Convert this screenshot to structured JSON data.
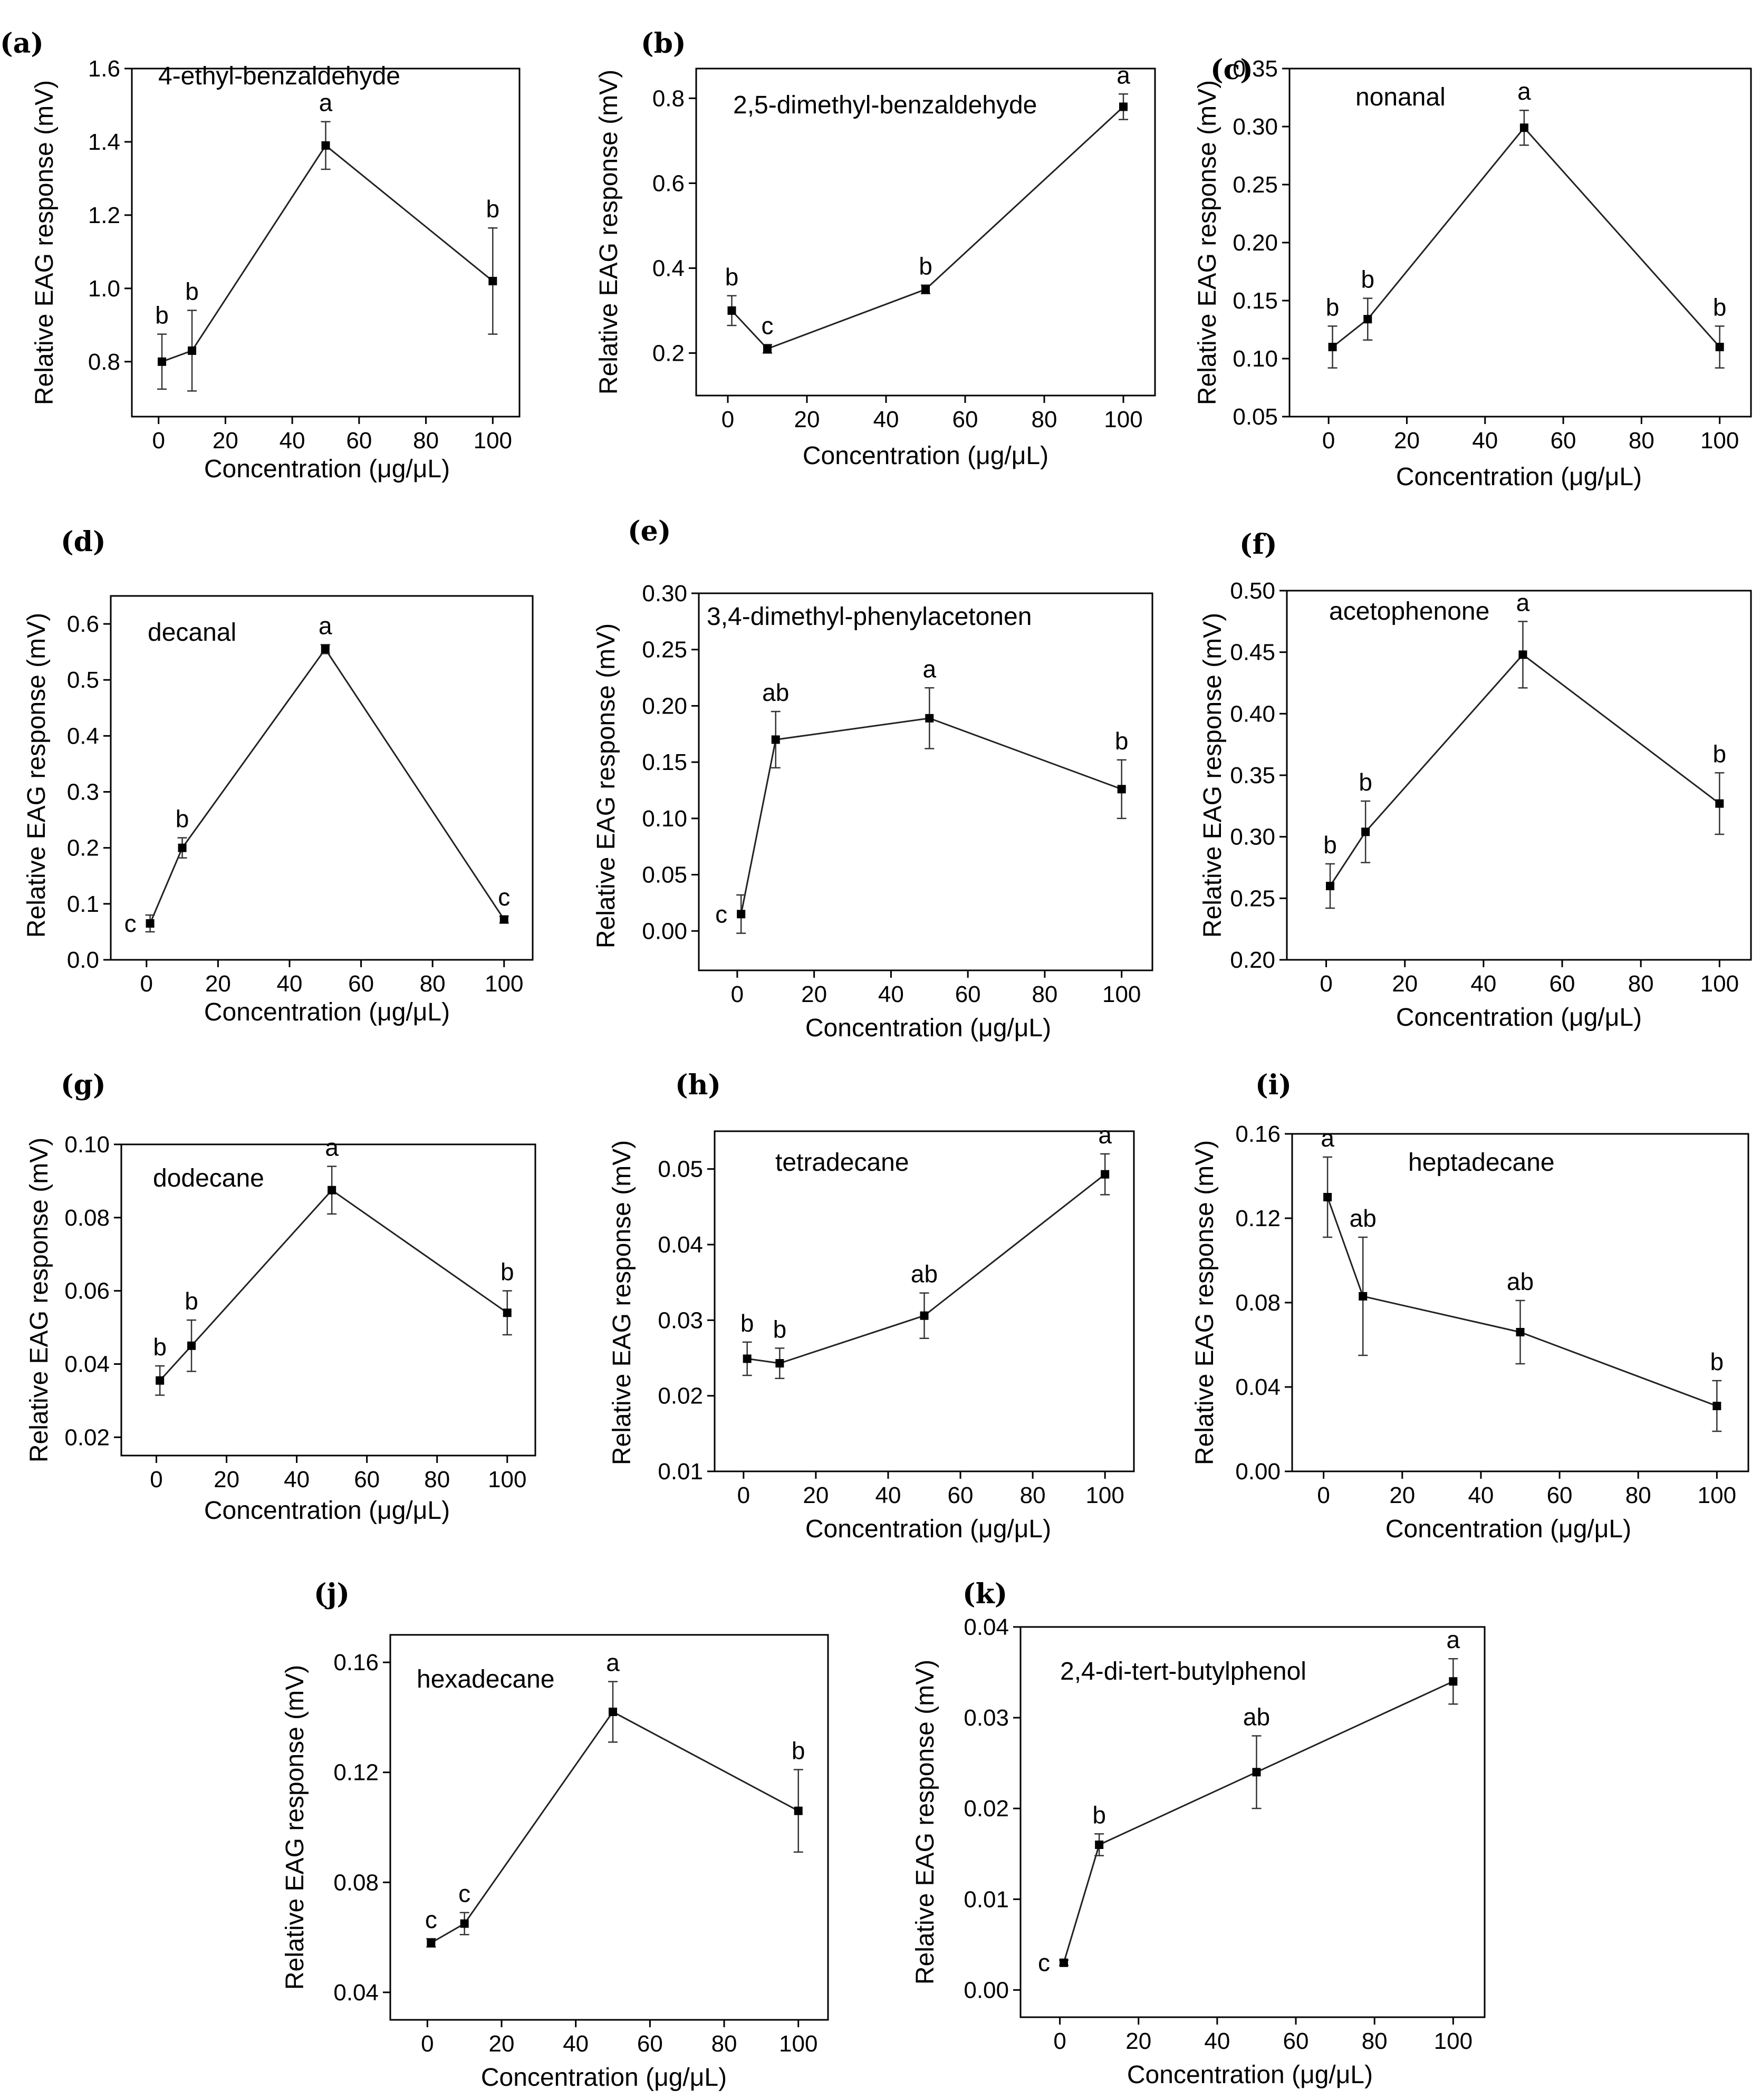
{
  "chart_data": [
    {
      "type": "line",
      "panel": "(a)",
      "title": "4-ethyl-benzaldehyde",
      "xlabel": "Concentration (μg/μL)",
      "ylabel": "Relative EAG response (mV)",
      "xlim": [
        -8,
        108
      ],
      "ylim": [
        0.65,
        1.6
      ],
      "xticks": [
        0,
        20,
        40,
        60,
        80,
        100
      ],
      "yticks": [
        0.8,
        1.0,
        1.2,
        1.4,
        1.6
      ],
      "ydec": 1,
      "x": [
        1,
        10,
        50,
        100
      ],
      "y": [
        0.8,
        0.83,
        1.39,
        1.02
      ],
      "err": [
        0.075,
        0.11,
        0.065,
        0.145
      ],
      "sig": [
        "b",
        "b",
        "a",
        "b"
      ]
    },
    {
      "type": "line",
      "panel": "(b)",
      "title": "2,5-dimethyl-benzaldehyde",
      "xlabel": "Concentration (μg/μL)",
      "ylabel": "Relative EAG response (mV)",
      "xlim": [
        -8,
        108
      ],
      "ylim": [
        0.1,
        0.87
      ],
      "xticks": [
        0,
        20,
        40,
        60,
        80,
        100
      ],
      "yticks": [
        0.2,
        0.4,
        0.6,
        0.8
      ],
      "ydec": 1,
      "x": [
        1,
        10,
        50,
        100
      ],
      "y": [
        0.3,
        0.21,
        0.35,
        0.78
      ],
      "err": [
        0.035,
        0.01,
        0.01,
        0.03
      ],
      "sig": [
        "b",
        "c",
        "b",
        "a"
      ]
    },
    {
      "type": "line",
      "panel": "(c)",
      "title": "nonanal",
      "xlabel": "Concentration (μg/μL)",
      "ylabel": "Relative EAG response (mV)",
      "xlim": [
        -10,
        108
      ],
      "ylim": [
        0.05,
        0.35
      ],
      "xticks": [
        0,
        20,
        40,
        60,
        80,
        100
      ],
      "yticks": [
        0.05,
        0.1,
        0.15,
        0.2,
        0.25,
        0.3,
        0.35
      ],
      "ydec": 2,
      "x": [
        1,
        10,
        50,
        100
      ],
      "y": [
        0.11,
        0.134,
        0.299,
        0.11
      ],
      "err": [
        0.018,
        0.018,
        0.015,
        0.018
      ],
      "sig": [
        "b",
        "b",
        "a",
        "b"
      ]
    },
    {
      "type": "line",
      "panel": "(d)",
      "title": "decanal",
      "xlabel": "Concentration (μg/μL)",
      "ylabel": "Relative EAG response (mV)",
      "xlim": [
        -10,
        108
      ],
      "ylim": [
        0.0,
        0.65
      ],
      "xticks": [
        0,
        20,
        40,
        60,
        80,
        100
      ],
      "yticks": [
        0.0,
        0.1,
        0.2,
        0.3,
        0.4,
        0.5,
        0.6
      ],
      "ydec": 1,
      "x": [
        1,
        10,
        50,
        100
      ],
      "y": [
        0.065,
        0.2,
        0.555,
        0.072
      ],
      "err": [
        0.015,
        0.018,
        0.008,
        0.006
      ],
      "sig": [
        "c",
        "b",
        "a",
        "c"
      ]
    },
    {
      "type": "line",
      "panel": "(e)",
      "title": "3,4-dimethyl-phenylacetonen",
      "xlabel": "Concentration (μg/μL)",
      "ylabel": "Relative EAG response (mV)",
      "xlim": [
        -10,
        108
      ],
      "ylim": [
        -0.035,
        0.3
      ],
      "xticks": [
        0,
        20,
        40,
        60,
        80,
        100
      ],
      "yticks": [
        0.0,
        0.05,
        0.1,
        0.15,
        0.2,
        0.25,
        0.3
      ],
      "ydec": 2,
      "x": [
        1,
        10,
        50,
        100
      ],
      "y": [
        0.015,
        0.17,
        0.189,
        0.126
      ],
      "err": [
        0.017,
        0.025,
        0.027,
        0.026
      ],
      "sig": [
        "c",
        "ab",
        "a",
        "b"
      ]
    },
    {
      "type": "line",
      "panel": "(f)",
      "title": "acetophenone",
      "xlabel": "Concentration (μg/μL)",
      "ylabel": "Relative EAG response (mV)",
      "xlim": [
        -10,
        108
      ],
      "ylim": [
        0.2,
        0.5
      ],
      "xticks": [
        0,
        20,
        40,
        60,
        80,
        100
      ],
      "yticks": [
        0.2,
        0.25,
        0.3,
        0.35,
        0.4,
        0.45,
        0.5
      ],
      "ydec": 2,
      "x": [
        1,
        10,
        50,
        100
      ],
      "y": [
        0.26,
        0.304,
        0.448,
        0.327
      ],
      "err": [
        0.018,
        0.025,
        0.027,
        0.025
      ],
      "sig": [
        "b",
        "b",
        "a",
        "b"
      ]
    },
    {
      "type": "line",
      "panel": "(g)",
      "title": "dodecane",
      "xlabel": "Concentration (μg/μL)",
      "ylabel": "Relative EAG response (mV)",
      "xlim": [
        -10,
        108
      ],
      "ylim": [
        0.015,
        0.1
      ],
      "xticks": [
        0,
        20,
        40,
        60,
        80,
        100
      ],
      "yticks": [
        0.02,
        0.04,
        0.06,
        0.08,
        0.1
      ],
      "ydec": 2,
      "x": [
        1,
        10,
        50,
        100
      ],
      "y": [
        0.0355,
        0.045,
        0.0875,
        0.054
      ],
      "err": [
        0.004,
        0.007,
        0.0065,
        0.006
      ],
      "sig": [
        "b",
        "b",
        "a",
        "b"
      ]
    },
    {
      "type": "line",
      "panel": "(h)",
      "title": "tetradecane",
      "xlabel": "Concentration (μg/μL)",
      "ylabel": "Relative EAG response (mV)",
      "xlim": [
        -8,
        108
      ],
      "ylim": [
        0.01,
        0.055
      ],
      "xticks": [
        0,
        20,
        40,
        60,
        80,
        100
      ],
      "yticks": [
        0.01,
        0.02,
        0.03,
        0.04,
        0.05
      ],
      "ydec": 2,
      "x": [
        1,
        10,
        50,
        100
      ],
      "y": [
        0.0249,
        0.0243,
        0.0306,
        0.0493
      ],
      "err": [
        0.0022,
        0.002,
        0.003,
        0.0027
      ],
      "sig": [
        "b",
        "b",
        "ab",
        "a"
      ]
    },
    {
      "type": "line",
      "panel": "(i)",
      "title": "heptadecane",
      "xlabel": "Concentration (μg/μL)",
      "ylabel": "Relative EAG response (mV)",
      "xlim": [
        -8,
        108
      ],
      "ylim": [
        0.0,
        0.16
      ],
      "xticks": [
        0,
        20,
        40,
        60,
        80,
        100
      ],
      "yticks": [
        0.0,
        0.04,
        0.08,
        0.12,
        0.16
      ],
      "ydec": 2,
      "x": [
        1,
        10,
        50,
        100
      ],
      "y": [
        0.13,
        0.083,
        0.066,
        0.031
      ],
      "err": [
        0.019,
        0.028,
        0.015,
        0.012
      ],
      "sig": [
        "a",
        "ab",
        "ab",
        "b"
      ]
    },
    {
      "type": "line",
      "panel": "(j)",
      "title": "hexadecane",
      "xlabel": "Concentration (μg/μL)",
      "ylabel": "Relative EAG response (mV)",
      "xlim": [
        -10,
        108
      ],
      "ylim": [
        0.03,
        0.17
      ],
      "xticks": [
        0,
        20,
        40,
        60,
        80,
        100
      ],
      "yticks": [
        0.04,
        0.08,
        0.12,
        0.16
      ],
      "ydec": 2,
      "x": [
        1,
        10,
        50,
        100
      ],
      "y": [
        0.058,
        0.065,
        0.142,
        0.106
      ],
      "err": [
        0.0015,
        0.004,
        0.011,
        0.015
      ],
      "sig": [
        "c",
        "c",
        "a",
        "b"
      ]
    },
    {
      "type": "line",
      "panel": "(k)",
      "title": "2,4-di-tert-butylphenol",
      "xlabel": "Concentration (μg/μL)",
      "ylabel": "Relative EAG response (mV)",
      "xlim": [
        -10,
        108
      ],
      "ylim": [
        -0.003,
        0.04
      ],
      "xticks": [
        0,
        20,
        40,
        60,
        80,
        100
      ],
      "yticks": [
        0.0,
        0.01,
        0.02,
        0.03,
        0.04
      ],
      "ydec": 2,
      "x": [
        1,
        10,
        50,
        100
      ],
      "y": [
        0.003,
        0.016,
        0.024,
        0.034
      ],
      "err": [
        0.0003,
        0.0012,
        0.004,
        0.0025
      ],
      "sig": [
        "c",
        "b",
        "ab",
        "a"
      ]
    }
  ]
}
